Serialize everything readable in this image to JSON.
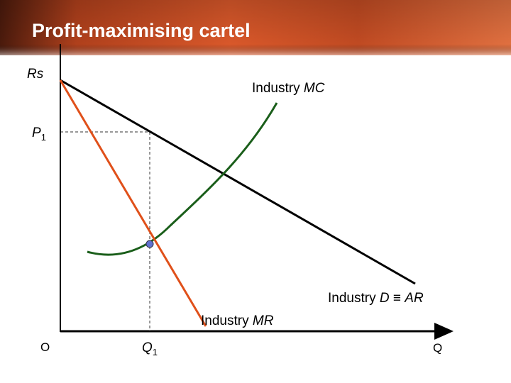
{
  "title": "Profit-maximising cartel",
  "axes": {
    "y_label": "Rs",
    "origin": "O",
    "x_label": "Q"
  },
  "price": {
    "symbol": "P",
    "subscript": "1"
  },
  "quantity": {
    "symbol": "Q",
    "subscript": "1"
  },
  "curves": {
    "mc": {
      "prefix": "Industry ",
      "symbol": "MC"
    },
    "demand": {
      "prefix": "Industry ",
      "symbol": "D",
      "equiv": " ≡ ",
      "symbol2": "AR"
    },
    "mr": {
      "prefix": "Industry ",
      "symbol": "MR"
    }
  }
}
